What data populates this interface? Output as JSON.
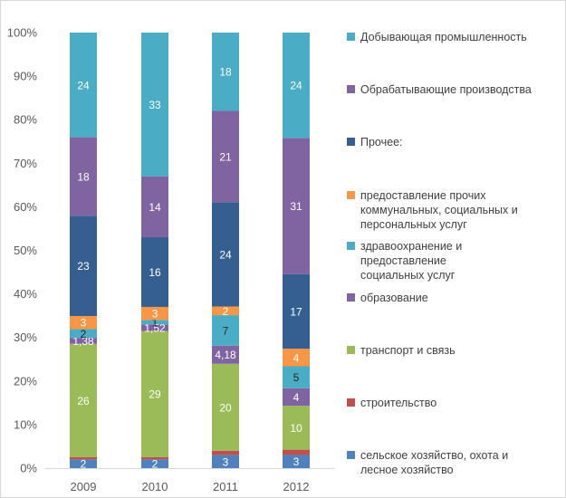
{
  "chart_data": {
    "type": "bar",
    "stacked": true,
    "normalized": true,
    "categories": [
      "2009",
      "2010",
      "2011",
      "2012"
    ],
    "ylim": [
      0,
      100
    ],
    "yticks": [
      "0%",
      "10%",
      "20%",
      "30%",
      "40%",
      "50%",
      "60%",
      "70%",
      "80%",
      "90%",
      "100%"
    ],
    "grid": false,
    "legend_position": "right",
    "series": [
      {
        "name": "сельское хозяйство, охота и лесное хозяйство",
        "color": "#4f81bd",
        "values": [
          2,
          2,
          3,
          3
        ],
        "labels": [
          "2",
          "2",
          "3",
          "3"
        ]
      },
      {
        "name": "строительство",
        "color": "#c0504d",
        "values": [
          0.5,
          0.5,
          1,
          1.2
        ],
        "labels": [
          "",
          "",
          "",
          ""
        ]
      },
      {
        "name": "транспорт и связь",
        "color": "#9bbb59",
        "values": [
          26,
          29,
          20,
          10
        ],
        "labels": [
          "26",
          "29",
          "20",
          "10"
        ]
      },
      {
        "name": "образование",
        "color": "#8064a2",
        "values": [
          1.38,
          1.52,
          4.18,
          4
        ],
        "labels": [
          "1,38",
          "1,52",
          "4,18",
          "4"
        ]
      },
      {
        "name": "здравоохранение и предоставление социальных услуг",
        "color": "#4bacc6",
        "values": [
          2,
          1,
          7,
          5
        ],
        "labels": [
          "2",
          "1",
          "7",
          "5"
        ]
      },
      {
        "name": "предоставление прочих коммунальных, социальных и персональных услуг",
        "color": "#f79646",
        "values": [
          3,
          3,
          2,
          4
        ],
        "labels": [
          "3",
          "3",
          "2",
          "4"
        ]
      },
      {
        "name": "Прочее:",
        "color": "#365f91",
        "values": [
          23,
          16,
          24,
          17
        ],
        "labels": [
          "23",
          "16",
          "24",
          "17"
        ]
      },
      {
        "name": "Обрабатывающие производства",
        "color": "#8064a2",
        "values": [
          18,
          14,
          21,
          31
        ],
        "labels": [
          "18",
          "14",
          "21",
          "31"
        ]
      },
      {
        "name": "Добывающая промышленность",
        "color": "#4bacc6",
        "values": [
          24,
          33,
          18,
          24
        ],
        "labels": [
          "24",
          "33",
          "18",
          "24"
        ]
      }
    ],
    "legend_order": [
      8,
      7,
      6,
      5,
      4,
      3,
      2,
      1,
      0
    ]
  }
}
